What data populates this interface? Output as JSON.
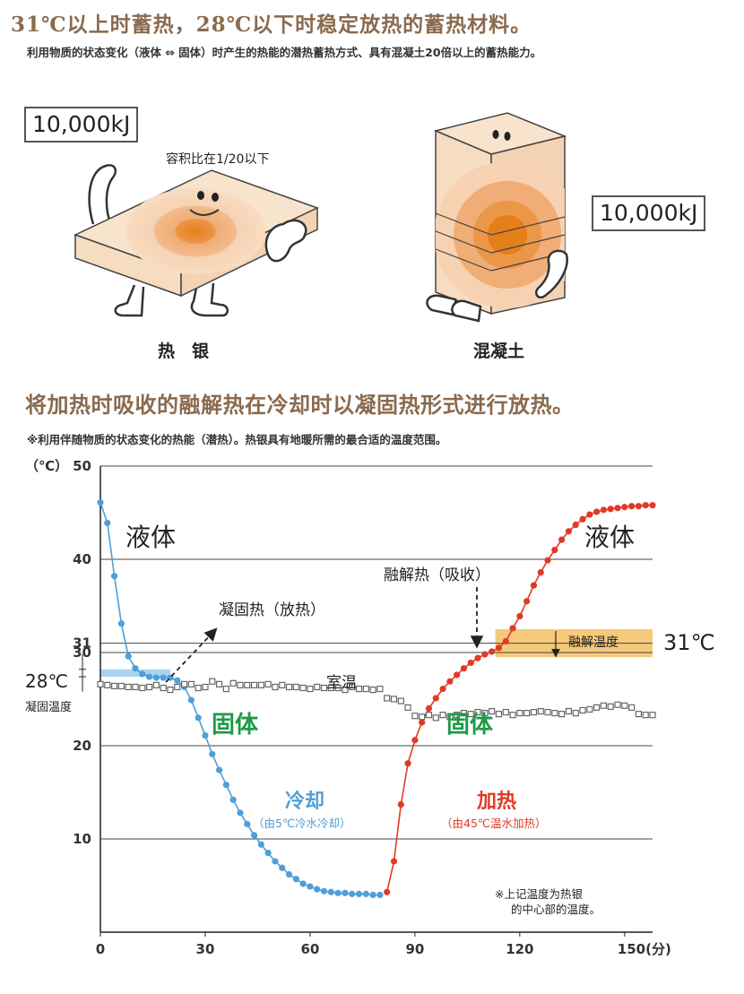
{
  "header": {
    "title": "31℃以上时蓄热，28℃以下时稳定放热的蓄热材料。",
    "subtitle": "利用物质的状态变化（液体 ⇔ 固体）时产生的热能的潜热蓄热方式、具有混凝土20倍以上的蓄热能力。"
  },
  "comparison": {
    "left": {
      "energy": "10,000kJ",
      "volume_note": "容积比在1/20以下",
      "caption": "热　银"
    },
    "right": {
      "energy": "10,000kJ",
      "caption": "混凝土"
    }
  },
  "section2": {
    "title": "将加热时吸收的融解热在冷却时以凝固热形式进行放热。",
    "note": "※利用伴随物质的状态变化的热能（潜热）。热银具有地暖所需的最合适的温度范围。"
  },
  "colors": {
    "cooling": "#4f9fd8",
    "heating": "#e03a25",
    "melt_band": "#f6c97a",
    "freeze_band": "#a9d4ee",
    "solid_text": "#1e9a48",
    "heading": "#8a6a4e"
  },
  "chart_data": {
    "type": "line",
    "xlabel": "(分)",
    "ylabel": "（℃）",
    "xlim": [
      0,
      158
    ],
    "ylim": [
      0,
      50
    ],
    "x_ticks": [
      0,
      30,
      60,
      90,
      120,
      150
    ],
    "x_tick_labels": [
      "0",
      "30",
      "60",
      "90",
      "120",
      "150(分)"
    ],
    "y_ticks": [
      10,
      20,
      30,
      31,
      40,
      50
    ],
    "y_tick_labels": [
      "10",
      "20",
      "30",
      "31",
      "40",
      "50"
    ],
    "grid": true,
    "melt_range": [
      29.5,
      32.5
    ],
    "freeze_range": [
      27.4,
      28.2
    ],
    "series": [
      {
        "name": "冷却",
        "color": "#4f9fd8",
        "x": [
          0,
          2,
          4,
          6,
          8,
          10,
          12,
          14,
          16,
          18,
          20,
          22,
          24,
          26,
          28,
          30,
          32,
          34,
          36,
          38,
          40,
          42,
          44,
          46,
          48,
          50,
          52,
          54,
          56,
          58,
          60,
          62,
          64,
          66,
          68,
          70,
          72,
          74,
          76,
          78,
          80
        ],
        "y": [
          46.1,
          43.9,
          38.2,
          33.1,
          29.6,
          28.3,
          27.7,
          27.4,
          27.3,
          27.3,
          27.3,
          27.0,
          26.3,
          24.9,
          23.0,
          21.1,
          19.1,
          17.4,
          15.8,
          14.2,
          12.8,
          11.6,
          10.4,
          9.4,
          8.5,
          7.6,
          6.9,
          6.2,
          5.7,
          5.2,
          4.9,
          4.6,
          4.4,
          4.3,
          4.2,
          4.2,
          4.1,
          4.1,
          4.1,
          4.0,
          4.0
        ]
      },
      {
        "name": "加热",
        "color": "#e03a25",
        "x": [
          82,
          84,
          86,
          88,
          90,
          92,
          94,
          96,
          98,
          100,
          102,
          104,
          106,
          108,
          110,
          112,
          114,
          116,
          118,
          120,
          122,
          124,
          126,
          128,
          130,
          132,
          134,
          136,
          138,
          140,
          142,
          144,
          146,
          148,
          150,
          152,
          154,
          156,
          158
        ],
        "y": [
          4.3,
          7.6,
          13.7,
          18.1,
          20.6,
          22.5,
          24.0,
          25.1,
          26.1,
          26.9,
          27.6,
          28.3,
          28.9,
          29.4,
          29.8,
          30.1,
          30.5,
          31.2,
          32.6,
          33.9,
          35.5,
          37.2,
          38.6,
          39.9,
          41.0,
          42.1,
          43.0,
          43.7,
          44.3,
          44.8,
          45.1,
          45.3,
          45.4,
          45.5,
          45.6,
          45.7,
          45.7,
          45.8,
          45.8
        ]
      },
      {
        "name": "室温",
        "color": "#666666",
        "x": [
          0,
          2,
          4,
          6,
          8,
          10,
          12,
          14,
          16,
          18,
          20,
          22,
          24,
          26,
          28,
          30,
          32,
          34,
          36,
          38,
          40,
          42,
          44,
          46,
          48,
          50,
          52,
          54,
          56,
          58,
          60,
          62,
          64,
          66,
          68,
          70,
          72,
          74,
          76,
          78,
          80,
          82,
          84,
          86,
          88,
          90,
          92,
          94,
          96,
          98,
          100,
          102,
          104,
          106,
          108,
          110,
          112,
          114,
          116,
          118,
          120,
          122,
          124,
          126,
          128,
          130,
          132,
          134,
          136,
          138,
          140,
          142,
          144,
          146,
          148,
          150,
          152,
          154,
          156,
          158
        ],
        "y": [
          26.6,
          26.5,
          26.4,
          26.4,
          26.3,
          26.3,
          26.2,
          26.3,
          26.5,
          26.2,
          26.0,
          26.3,
          26.6,
          26.6,
          26.2,
          26.3,
          26.9,
          26.6,
          26.1,
          26.7,
          26.5,
          26.5,
          26.5,
          26.5,
          26.6,
          26.3,
          26.5,
          26.3,
          26.3,
          26.2,
          26.1,
          26.3,
          26.2,
          26.2,
          26.2,
          26.0,
          26.3,
          26.1,
          26.1,
          26.0,
          26.1,
          25.1,
          25.0,
          24.8,
          24.1,
          23.2,
          23.1,
          23.3,
          23.0,
          23.3,
          23.1,
          23.3,
          23.5,
          23.4,
          23.6,
          23.5,
          23.7,
          23.4,
          23.6,
          23.3,
          23.5,
          23.5,
          23.6,
          23.7,
          23.6,
          23.5,
          23.4,
          23.7,
          23.5,
          23.8,
          23.9,
          24.1,
          24.3,
          24.2,
          24.4,
          24.3,
          24.1,
          23.4,
          23.3,
          23.3
        ]
      }
    ],
    "annotations": {
      "liquid_left": "液体",
      "liquid_right": "液体",
      "freeze_heat": "凝固热（放热）",
      "melt_heat": "融解热（吸收）",
      "room_temp": "室温",
      "solid_left": "固体",
      "solid_right": "固体",
      "cooling": "冷却",
      "cooling_sub": "（由5℃冷水冷却）",
      "heating": "加热",
      "heating_sub": "（由45℃温水加热）",
      "melt_temp": "融解温度",
      "melt_temp_value": "31℃",
      "freeze_temp_value": "28℃",
      "freeze_temp": "凝固温度",
      "footnote_line1": "※上记温度为热银",
      "footnote_line2": "的中心部的温度。"
    }
  }
}
